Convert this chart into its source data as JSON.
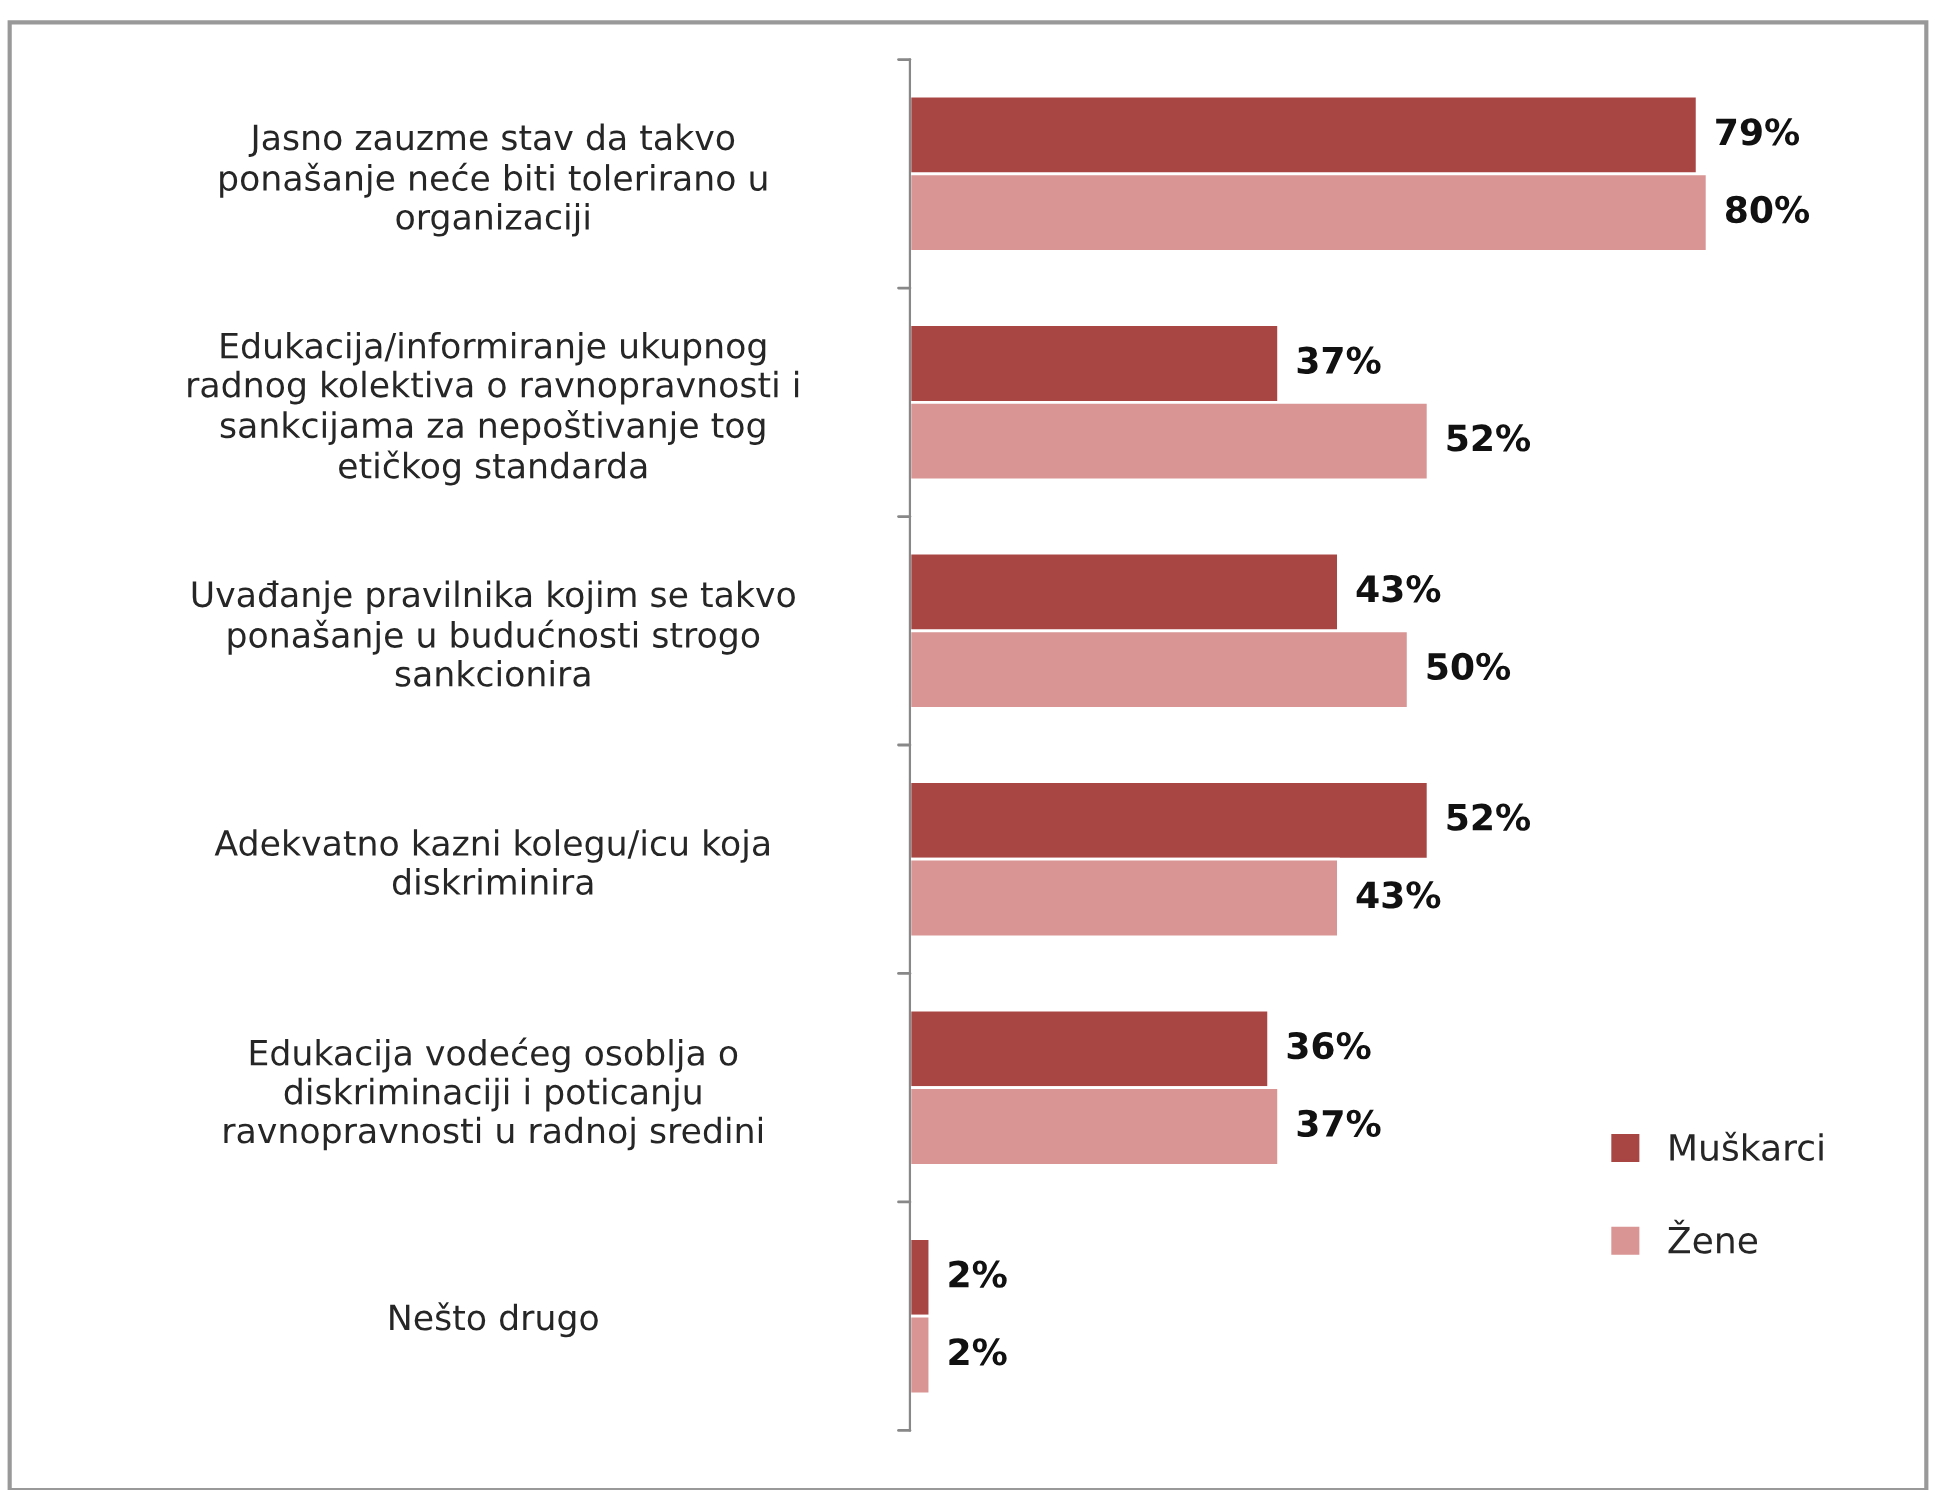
{
  "chart_data": {
    "type": "bar",
    "orientation": "horizontal",
    "legend": "lower right",
    "grid": false,
    "categories": [
      "Jasno zauzme stav da takvo\nponašanje neće biti tolerirano u\norganizaciji",
      "Edukacija/informiranje ukupnog\nradnog kolektiva o ravnopravnosti i\nsankcijama za nepoštivanje tog\netičkog standarda",
      "Uvađanje pravilnika kojim se takvo\nponašanje u budućnosti strogo\nsankcionira",
      "Adekvatno kazni kolegu/icu koja\ndiskriminira",
      "Edukacija vodećeg osoblja o\ndiskriminaciji i poticanju\nravnopravnosti u radnoj sredini",
      "Nešto drugo"
    ],
    "series": [
      {
        "name": "Muškarci",
        "color": "#a84644",
        "values": [
          79,
          37,
          43,
          52,
          36,
          2
        ],
        "value_labels": [
          "79%",
          "37%",
          "43%",
          "52%",
          "36%",
          "2%"
        ]
      },
      {
        "name": "Žene",
        "color": "#d99594",
        "values": [
          80,
          52,
          50,
          43,
          37,
          2
        ],
        "value_labels": [
          "80%",
          "52%",
          "50%",
          "43%",
          "37%",
          "2%"
        ]
      }
    ]
  }
}
